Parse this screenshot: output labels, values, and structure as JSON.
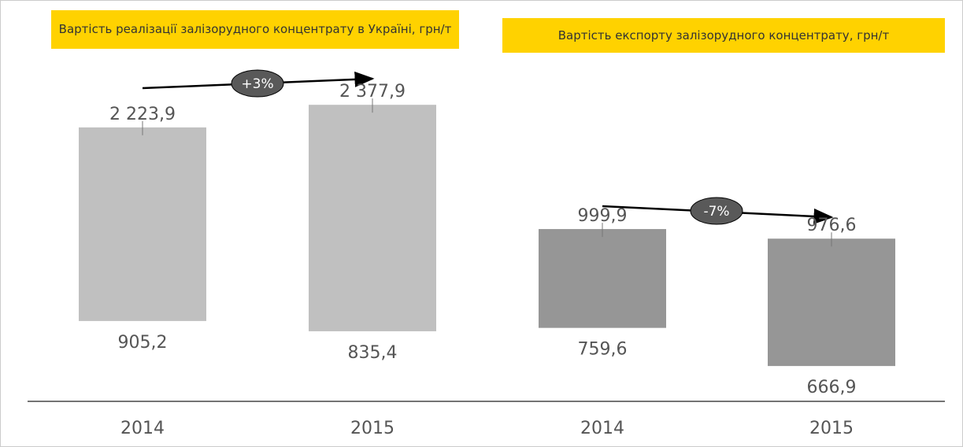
{
  "chart_data": [
    {
      "type": "range_bar",
      "title": "Вартість реалізації залізорудного концентрату в Україні, грн/т",
      "categories": [
        "2014",
        "2015"
      ],
      "values": [
        [
          905.2,
          2223.9
        ],
        [
          835.4,
          2377.9
        ]
      ],
      "value_labels": [
        [
          "905,2",
          "2 223,9"
        ],
        [
          "835,4",
          "2 377,9"
        ]
      ],
      "color": "#c0c0c0",
      "ylim": [
        358,
        2770
      ],
      "annotation": "+3%"
    },
    {
      "type": "range_bar",
      "title": "Вартість експорту залізорудного концентрату, грн/т",
      "categories": [
        "2014",
        "2015"
      ],
      "values": [
        [
          759.6,
          999.9
        ],
        [
          666.9,
          976.6
        ]
      ],
      "value_labels": [
        [
          "759,6",
          "999,9"
        ],
        [
          "666,9",
          "976,6"
        ]
      ],
      "color": "#969696",
      "ylim": [
        581,
        1442
      ],
      "annotation": "-7%"
    }
  ]
}
